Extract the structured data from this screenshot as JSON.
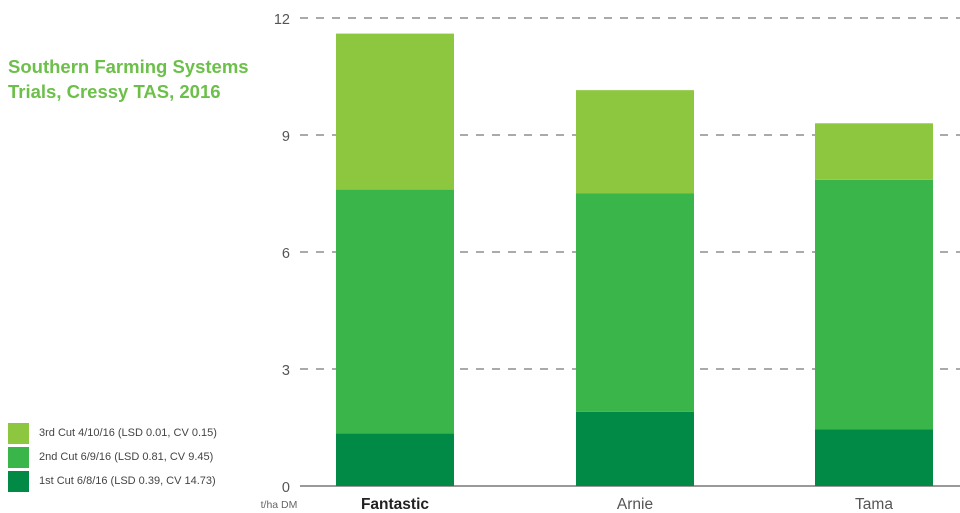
{
  "chart_data": {
    "type": "bar",
    "stacked": true,
    "title_lines": [
      "Southern Farming Systems",
      "Trials, Cressy TAS, 2016"
    ],
    "categories": [
      "Fantastic",
      "Arnie",
      "Tama"
    ],
    "highlighted_category": "Fantastic",
    "yticks": [
      "0",
      "3",
      "6",
      "9",
      "12"
    ],
    "ylim": [
      0,
      12
    ],
    "ylabel": "t/ha DM",
    "grid": "dashed horizontal",
    "series": [
      {
        "name": "1st Cut 6/8/16 (LSD 0.39, CV 14.73)",
        "values": [
          1.35,
          1.9,
          1.45
        ],
        "color": "#008a45"
      },
      {
        "name": "2nd Cut 6/9/16 (LSD 0.81, CV 9.45)",
        "values": [
          6.25,
          5.6,
          6.4
        ],
        "color": "#39b54a"
      },
      {
        "name": "3rd Cut 4/10/16 (LSD 0.01, CV 0.15)",
        "values": [
          4.0,
          2.65,
          1.45
        ],
        "color": "#8dc63f"
      }
    ]
  }
}
